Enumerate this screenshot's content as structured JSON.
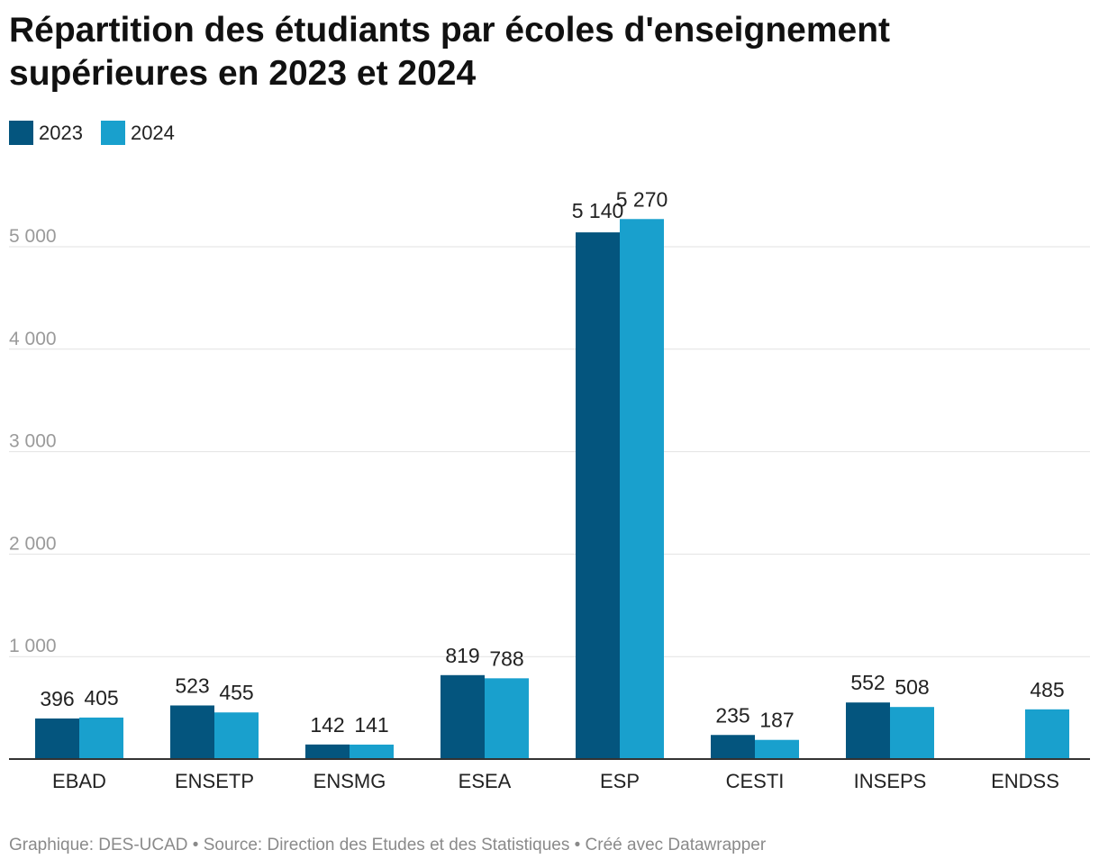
{
  "title": "Répartition des étudiants par écoles d'enseignement supérieures en 2023 et 2024",
  "legend": [
    {
      "label": "2023",
      "color": "#04557e"
    },
    {
      "label": "2024",
      "color": "#19a0cd"
    }
  ],
  "footer": "Graphique: DES-UCAD • Source: Direction des Etudes et des Statistiques • Créé avec Datawrapper",
  "chart_data": {
    "type": "bar",
    "title": "Répartition des étudiants par écoles d'enseignement supérieures en 2023 et 2024",
    "xlabel": "",
    "ylabel": "",
    "ylim": [
      0,
      5000
    ],
    "yticks": [
      1000,
      2000,
      3000,
      4000,
      5000
    ],
    "ytick_labels": [
      "1 000",
      "2 000",
      "3 000",
      "4 000",
      "5 000"
    ],
    "categories": [
      "EBAD",
      "ENSETP",
      "ENSMG",
      "ESEA",
      "ESP",
      "CESTI",
      "INSEPS",
      "ENDSS"
    ],
    "series": [
      {
        "name": "2023",
        "color": "#04557e",
        "values": [
          396,
          523,
          142,
          819,
          5140,
          235,
          552,
          null
        ],
        "labels": [
          "396",
          "523",
          "142",
          "819",
          "5 140",
          "235",
          "552",
          ""
        ]
      },
      {
        "name": "2024",
        "color": "#19a0cd",
        "values": [
          405,
          455,
          141,
          788,
          5270,
          187,
          508,
          485
        ],
        "labels": [
          "405",
          "455",
          "141",
          "788",
          "5 270",
          "187",
          "508",
          "485"
        ]
      }
    ],
    "grid": true,
    "legend_position": "top-left"
  }
}
